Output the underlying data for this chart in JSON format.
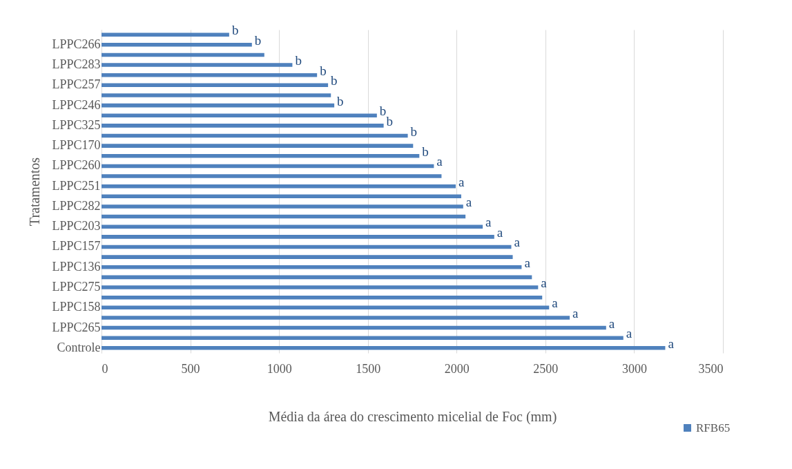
{
  "chart_data": {
    "type": "bar",
    "orientation": "horizontal",
    "xlabel": "Média da área do crescimento micelial de Foc (mm)",
    "ylabel": "Tratamentos",
    "categories": [
      null,
      "LPPC266",
      null,
      "LPPC283",
      null,
      "LPPC257",
      null,
      "LPPC246",
      null,
      "LPPC325",
      null,
      "LPPC170",
      null,
      "LPPC260",
      null,
      "LPPC251",
      null,
      "LPPC282",
      null,
      "LPPC203",
      null,
      "LPPC157",
      null,
      "LPPC136",
      null,
      "LPPC275",
      null,
      "LPPC158",
      null,
      "LPPC265",
      null,
      "Controle"
    ],
    "series": [
      {
        "name": "RFB65",
        "color": "#4f81bd",
        "values": [
          719,
          847,
          917,
          1075,
          1214,
          1276,
          1292,
          1311,
          1551,
          1589,
          1725,
          1755,
          1790,
          1872,
          1915,
          1995,
          2026,
          2037,
          2050,
          2147,
          2212,
          2308,
          2316,
          2366,
          2424,
          2459,
          2482,
          2521,
          2637,
          2842,
          2939,
          3175
        ],
        "value_labels": [
          "b",
          "b",
          null,
          "b",
          "b",
          "b",
          null,
          "b",
          "b",
          "b",
          "b",
          null,
          "b",
          "a",
          null,
          "a",
          null,
          "a",
          null,
          "a",
          "a",
          "a",
          null,
          "a",
          null,
          "a",
          null,
          "a",
          "a",
          "a",
          "a",
          "a"
        ]
      }
    ],
    "xlim": [
      0,
      3500
    ],
    "xticks": [
      0,
      500,
      1000,
      1500,
      2000,
      2500,
      3000,
      3500
    ],
    "grid": "x",
    "legend": "bottom right"
  }
}
